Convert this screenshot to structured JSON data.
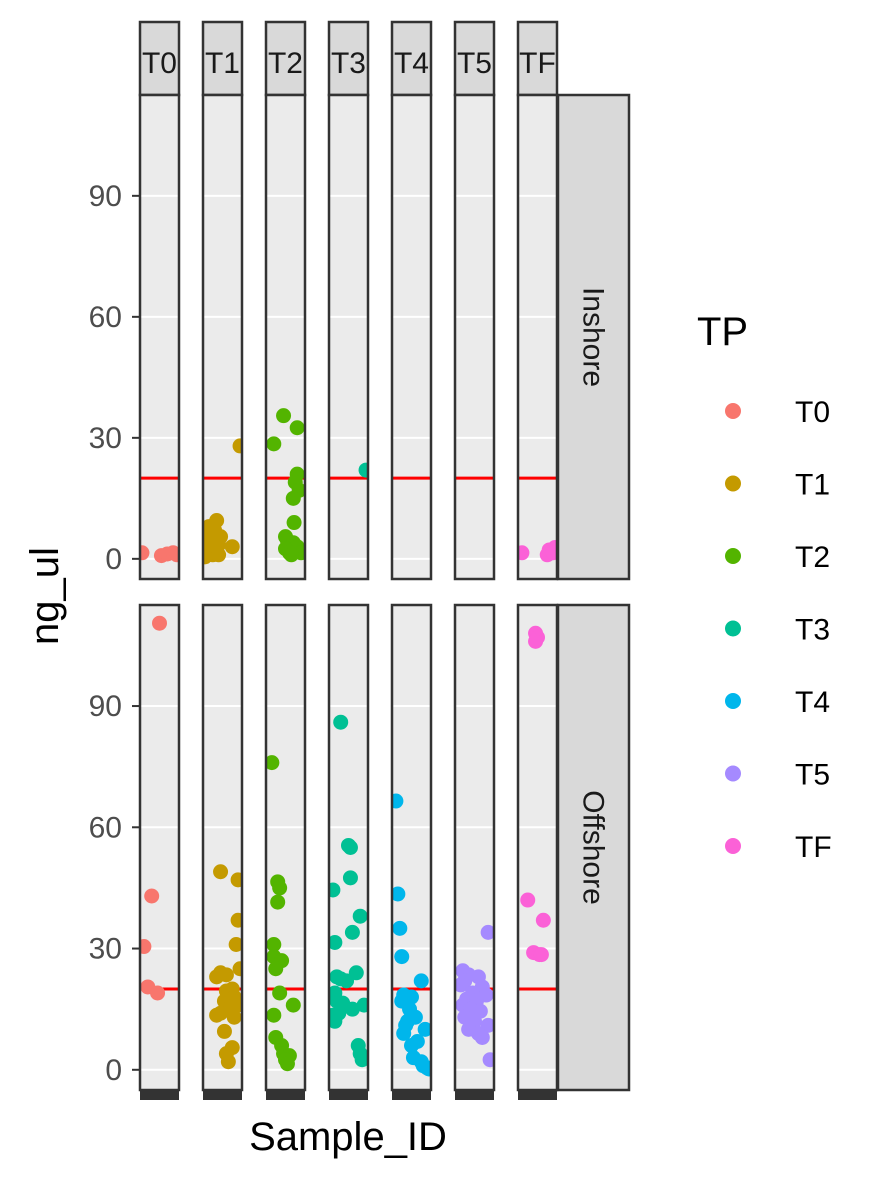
{
  "chart_data": {
    "type": "scatter",
    "xlabel": "Sample_ID",
    "ylabel": "ng_ul",
    "ylim": [
      -5,
      115
    ],
    "yticks": [
      0,
      30,
      60,
      90
    ],
    "threshold": 20,
    "threshold_color": "#ff0000",
    "column_facets": [
      "T0",
      "T1",
      "T2",
      "T3",
      "T4",
      "T5",
      "TF"
    ],
    "row_facets": [
      "Inshore",
      "Offshore"
    ],
    "legend": {
      "title": "TP",
      "placement": "right",
      "items": [
        {
          "label": "T0",
          "color": "#F8766D"
        },
        {
          "label": "T1",
          "color": "#C49A00"
        },
        {
          "label": "T2",
          "color": "#53B400"
        },
        {
          "label": "T3",
          "color": "#00C094"
        },
        {
          "label": "T4",
          "color": "#00B6EB"
        },
        {
          "label": "T5",
          "color": "#A58AFF"
        },
        {
          "label": "TF",
          "color": "#FB61D7"
        }
      ]
    },
    "panels": [
      {
        "row": "Inshore",
        "col": "T0",
        "points": [
          {
            "x": 0.05,
            "y": 1.5
          },
          {
            "x": 0.55,
            "y": 0.8
          },
          {
            "x": 0.7,
            "y": 1.2
          },
          {
            "x": 0.85,
            "y": 1.5
          },
          {
            "x": 0.95,
            "y": 1.0
          }
        ]
      },
      {
        "row": "Inshore",
        "col": "T1",
        "points": [
          {
            "x": 0.95,
            "y": 28
          },
          {
            "x": 0.35,
            "y": 9.5
          },
          {
            "x": 0.15,
            "y": 8
          },
          {
            "x": 0.3,
            "y": 7
          },
          {
            "x": 0.1,
            "y": 6
          },
          {
            "x": 0.45,
            "y": 5.5
          },
          {
            "x": 0.25,
            "y": 5
          },
          {
            "x": 0.05,
            "y": 4.5
          },
          {
            "x": 0.2,
            "y": 4
          },
          {
            "x": 0.4,
            "y": 3.5
          },
          {
            "x": 0.75,
            "y": 3
          },
          {
            "x": 0.15,
            "y": 2.5
          },
          {
            "x": 0.3,
            "y": 2
          },
          {
            "x": 0.1,
            "y": 1.5
          },
          {
            "x": 0.25,
            "y": 1
          },
          {
            "x": 0.4,
            "y": 1
          },
          {
            "x": 0.05,
            "y": 0.5
          }
        ]
      },
      {
        "row": "Inshore",
        "col": "T2",
        "points": [
          {
            "x": 0.45,
            "y": 35.5
          },
          {
            "x": 0.8,
            "y": 32.5
          },
          {
            "x": 0.2,
            "y": 28.5
          },
          {
            "x": 0.8,
            "y": 21
          },
          {
            "x": 0.75,
            "y": 19
          },
          {
            "x": 0.85,
            "y": 17
          },
          {
            "x": 0.7,
            "y": 15
          },
          {
            "x": 0.72,
            "y": 9
          },
          {
            "x": 0.5,
            "y": 5.5
          },
          {
            "x": 0.55,
            "y": 4.5
          },
          {
            "x": 0.7,
            "y": 4
          },
          {
            "x": 0.8,
            "y": 3
          },
          {
            "x": 0.5,
            "y": 2.5
          },
          {
            "x": 0.6,
            "y": 1.5
          },
          {
            "x": 0.9,
            "y": 1.5
          },
          {
            "x": 0.65,
            "y": 1
          }
        ]
      },
      {
        "row": "Inshore",
        "col": "T3",
        "points": [
          {
            "x": 0.95,
            "y": 22
          }
        ]
      },
      {
        "row": "Inshore",
        "col": "T4",
        "points": []
      },
      {
        "row": "Inshore",
        "col": "T5",
        "points": []
      },
      {
        "row": "Inshore",
        "col": "TF",
        "points": [
          {
            "x": 0.1,
            "y": 1.5
          },
          {
            "x": 0.75,
            "y": 1
          },
          {
            "x": 0.8,
            "y": 2.2
          },
          {
            "x": 0.95,
            "y": 2.8
          },
          {
            "x": 0.9,
            "y": 1.5
          }
        ]
      },
      {
        "row": "Offshore",
        "col": "T0",
        "points": [
          {
            "x": 0.5,
            "y": 110.5
          },
          {
            "x": 0.3,
            "y": 43
          },
          {
            "x": 0.1,
            "y": 30.5
          },
          {
            "x": 0.2,
            "y": 20.5
          },
          {
            "x": 0.45,
            "y": 19
          }
        ]
      },
      {
        "row": "Offshore",
        "col": "T1",
        "points": [
          {
            "x": 0.45,
            "y": 49
          },
          {
            "x": 0.9,
            "y": 47
          },
          {
            "x": 0.9,
            "y": 37
          },
          {
            "x": 0.85,
            "y": 31
          },
          {
            "x": 0.95,
            "y": 25
          },
          {
            "x": 0.45,
            "y": 24
          },
          {
            "x": 0.6,
            "y": 23.5
          },
          {
            "x": 0.35,
            "y": 23
          },
          {
            "x": 0.75,
            "y": 20
          },
          {
            "x": 0.6,
            "y": 19.5
          },
          {
            "x": 0.8,
            "y": 18
          },
          {
            "x": 0.55,
            "y": 17
          },
          {
            "x": 0.9,
            "y": 16
          },
          {
            "x": 0.65,
            "y": 15
          },
          {
            "x": 0.45,
            "y": 14
          },
          {
            "x": 0.35,
            "y": 13.5
          },
          {
            "x": 0.8,
            "y": 13
          },
          {
            "x": 0.55,
            "y": 9.5
          },
          {
            "x": 0.75,
            "y": 5.5
          },
          {
            "x": 0.6,
            "y": 4
          },
          {
            "x": 0.65,
            "y": 2
          }
        ]
      },
      {
        "row": "Offshore",
        "col": "T2",
        "points": [
          {
            "x": 0.15,
            "y": 76
          },
          {
            "x": 0.3,
            "y": 46.5
          },
          {
            "x": 0.35,
            "y": 45
          },
          {
            "x": 0.3,
            "y": 41.5
          },
          {
            "x": 0.2,
            "y": 31
          },
          {
            "x": 0.2,
            "y": 28
          },
          {
            "x": 0.4,
            "y": 27
          },
          {
            "x": 0.25,
            "y": 25
          },
          {
            "x": 0.35,
            "y": 19
          },
          {
            "x": 0.7,
            "y": 16
          },
          {
            "x": 0.2,
            "y": 13.5
          },
          {
            "x": 0.25,
            "y": 8
          },
          {
            "x": 0.4,
            "y": 6
          },
          {
            "x": 0.45,
            "y": 4
          },
          {
            "x": 0.6,
            "y": 3.5
          },
          {
            "x": 0.5,
            "y": 2.5
          },
          {
            "x": 0.55,
            "y": 1.5
          }
        ]
      },
      {
        "row": "Offshore",
        "col": "T3",
        "points": [
          {
            "x": 0.3,
            "y": 86
          },
          {
            "x": 0.5,
            "y": 55.5
          },
          {
            "x": 0.55,
            "y": 55
          },
          {
            "x": 0.55,
            "y": 47.5
          },
          {
            "x": 0.1,
            "y": 44.5
          },
          {
            "x": 0.8,
            "y": 38
          },
          {
            "x": 0.6,
            "y": 34
          },
          {
            "x": 0.15,
            "y": 31.5
          },
          {
            "x": 0.7,
            "y": 24
          },
          {
            "x": 0.2,
            "y": 23
          },
          {
            "x": 0.3,
            "y": 22.5
          },
          {
            "x": 0.45,
            "y": 22
          },
          {
            "x": 0.15,
            "y": 19
          },
          {
            "x": 0.2,
            "y": 17
          },
          {
            "x": 0.35,
            "y": 16.5
          },
          {
            "x": 0.9,
            "y": 16
          },
          {
            "x": 0.6,
            "y": 15
          },
          {
            "x": 0.25,
            "y": 14
          },
          {
            "x": 0.1,
            "y": 13.5
          },
          {
            "x": 0.15,
            "y": 12
          },
          {
            "x": 0.75,
            "y": 6
          },
          {
            "x": 0.8,
            "y": 4
          },
          {
            "x": 0.85,
            "y": 2.5
          }
        ]
      },
      {
        "row": "Offshore",
        "col": "T4",
        "points": [
          {
            "x": 0.1,
            "y": 66.5
          },
          {
            "x": 0.15,
            "y": 43.5
          },
          {
            "x": 0.2,
            "y": 35
          },
          {
            "x": 0.25,
            "y": 28
          },
          {
            "x": 0.75,
            "y": 22
          },
          {
            "x": 0.3,
            "y": 18.5
          },
          {
            "x": 0.5,
            "y": 18
          },
          {
            "x": 0.25,
            "y": 17
          },
          {
            "x": 0.45,
            "y": 15
          },
          {
            "x": 0.6,
            "y": 13
          },
          {
            "x": 0.4,
            "y": 12
          },
          {
            "x": 0.35,
            "y": 11
          },
          {
            "x": 0.85,
            "y": 10
          },
          {
            "x": 0.3,
            "y": 9
          },
          {
            "x": 0.65,
            "y": 7
          },
          {
            "x": 0.5,
            "y": 6
          },
          {
            "x": 0.55,
            "y": 3
          },
          {
            "x": 0.75,
            "y": 2
          },
          {
            "x": 0.8,
            "y": 1
          },
          {
            "x": 0.9,
            "y": 0.5
          },
          {
            "x": 0.95,
            "y": 0.2
          }
        ]
      },
      {
        "row": "Offshore",
        "col": "T5",
        "points": [
          {
            "x": 0.85,
            "y": 34
          },
          {
            "x": 0.2,
            "y": 24.5
          },
          {
            "x": 0.35,
            "y": 23.5
          },
          {
            "x": 0.6,
            "y": 23
          },
          {
            "x": 0.25,
            "y": 22
          },
          {
            "x": 0.15,
            "y": 21
          },
          {
            "x": 0.7,
            "y": 20.5
          },
          {
            "x": 0.45,
            "y": 19
          },
          {
            "x": 0.8,
            "y": 18.5
          },
          {
            "x": 0.3,
            "y": 17.5
          },
          {
            "x": 0.55,
            "y": 17
          },
          {
            "x": 0.2,
            "y": 16
          },
          {
            "x": 0.4,
            "y": 15
          },
          {
            "x": 0.65,
            "y": 14.5
          },
          {
            "x": 0.25,
            "y": 13
          },
          {
            "x": 0.5,
            "y": 12
          },
          {
            "x": 0.85,
            "y": 11
          },
          {
            "x": 0.35,
            "y": 10
          },
          {
            "x": 0.6,
            "y": 9
          },
          {
            "x": 0.7,
            "y": 8
          },
          {
            "x": 0.9,
            "y": 2.5
          }
        ]
      },
      {
        "row": "Offshore",
        "col": "TF",
        "points": [
          {
            "x": 0.45,
            "y": 108
          },
          {
            "x": 0.5,
            "y": 107
          },
          {
            "x": 0.45,
            "y": 106
          },
          {
            "x": 0.25,
            "y": 42
          },
          {
            "x": 0.65,
            "y": 37
          },
          {
            "x": 0.4,
            "y": 29
          },
          {
            "x": 0.55,
            "y": 28.5
          },
          {
            "x": 0.6,
            "y": 28.5
          }
        ]
      }
    ]
  }
}
